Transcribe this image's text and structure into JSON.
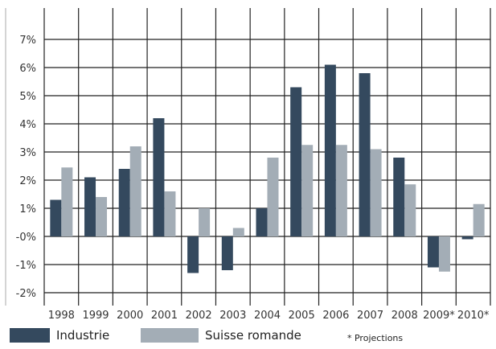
{
  "chart_data": {
    "type": "bar",
    "categories": [
      "1998",
      "1999",
      "2000",
      "2001",
      "2002",
      "2003",
      "2004",
      "2005",
      "2006",
      "2007",
      "2008",
      "2009*",
      "2010*"
    ],
    "series": [
      {
        "name": "Industrie",
        "color": "#34495e",
        "values": [
          1.3,
          2.1,
          2.4,
          4.2,
          -1.3,
          -1.2,
          1.0,
          5.3,
          6.1,
          5.8,
          2.8,
          -1.1,
          -0.1
        ]
      },
      {
        "name": "Suisse romande",
        "color": "#a3adb6",
        "values": [
          2.45,
          1.4,
          3.2,
          1.6,
          1.0,
          0.3,
          2.8,
          3.25,
          3.25,
          3.1,
          1.85,
          -1.25,
          1.15
        ]
      }
    ],
    "yticks": [
      "7%",
      "6%",
      "5%",
      "4%",
      "3%",
      "2%",
      "1%",
      "-0%",
      "-1%",
      "-2%"
    ],
    "ytick_values": [
      7,
      6,
      5,
      4,
      3,
      2,
      1,
      0,
      -1,
      -2
    ],
    "ylim": [
      -2.3,
      7.5
    ],
    "grid": true,
    "legend_position": "bottom-left",
    "footnote": "* Projections"
  }
}
